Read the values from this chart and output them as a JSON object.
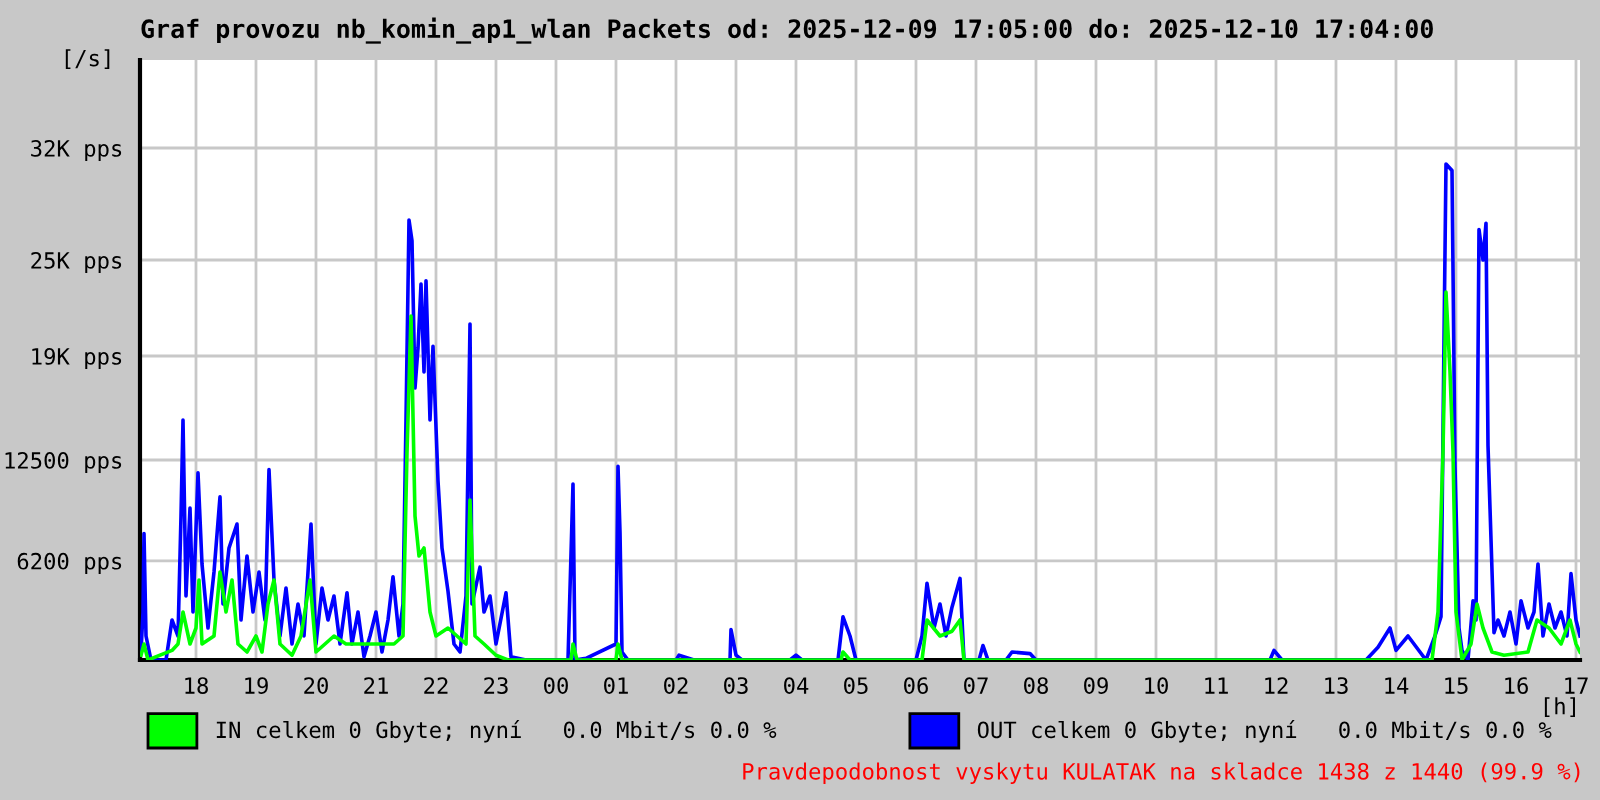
{
  "chart_data": {
    "type": "line",
    "title": "Graf provozu nb_komin_ap1_wlan Packets od: 2025-12-09 17:05:00 do: 2025-12-10 17:04:00",
    "xlabel": "[h]",
    "ylabel": "[/s]",
    "xlim": [
      "2025-12-09T17:04",
      "2025-12-10T17:04"
    ],
    "xticks": [
      {
        "value": "2025-12-09T18:00",
        "label": "18"
      },
      {
        "value": "2025-12-09T19:00",
        "label": "19"
      },
      {
        "value": "2025-12-09T20:00",
        "label": "20"
      },
      {
        "value": "2025-12-09T21:00",
        "label": "21"
      },
      {
        "value": "2025-12-09T22:00",
        "label": "22"
      },
      {
        "value": "2025-12-09T23:00",
        "label": "23"
      },
      {
        "value": "2025-12-10T00:00",
        "label": "00"
      },
      {
        "value": "2025-12-10T01:00",
        "label": "01"
      },
      {
        "value": "2025-12-10T02:00",
        "label": "02"
      },
      {
        "value": "2025-12-10T03:00",
        "label": "03"
      },
      {
        "value": "2025-12-10T04:00",
        "label": "04"
      },
      {
        "value": "2025-12-10T05:00",
        "label": "05"
      },
      {
        "value": "2025-12-10T06:00",
        "label": "06"
      },
      {
        "value": "2025-12-10T07:00",
        "label": "07"
      },
      {
        "value": "2025-12-10T08:00",
        "label": "08"
      },
      {
        "value": "2025-12-10T09:00",
        "label": "09"
      },
      {
        "value": "2025-12-10T10:00",
        "label": "10"
      },
      {
        "value": "2025-12-10T11:00",
        "label": "11"
      },
      {
        "value": "2025-12-10T12:00",
        "label": "12"
      },
      {
        "value": "2025-12-10T13:00",
        "label": "13"
      },
      {
        "value": "2025-12-10T14:00",
        "label": "14"
      },
      {
        "value": "2025-12-10T15:00",
        "label": "15"
      },
      {
        "value": "2025-12-10T16:00",
        "label": "16"
      },
      {
        "value": "2025-12-10T17:00",
        "label": "17"
      }
    ],
    "ylim": [
      0,
      37500
    ],
    "yticks": [
      {
        "value": 6200,
        "label": "6200 pps"
      },
      {
        "value": 12500,
        "label": "12500 pps"
      },
      {
        "value": 19000,
        "label": "19K pps"
      },
      {
        "value": 25000,
        "label": "25K pps"
      },
      {
        "value": 32000,
        "label": "32K pps"
      }
    ],
    "grid": true,
    "legend": "bottom",
    "series": [
      {
        "name": "IN celkem 0 Gbyte; nyní   0.0 Mbit/s 0.0 %",
        "color": "#00ff00",
        "x": [
          "2025-12-09T17:05",
          "2025-12-09T17:08",
          "2025-12-09T17:12",
          "2025-12-09T17:36",
          "2025-12-09T17:42",
          "2025-12-09T17:47",
          "2025-12-09T17:54",
          "2025-12-09T18:00",
          "2025-12-09T18:03",
          "2025-12-09T18:06",
          "2025-12-09T18:18",
          "2025-12-09T18:24",
          "2025-12-09T18:30",
          "2025-12-09T18:36",
          "2025-12-09T18:42",
          "2025-12-09T18:51",
          "2025-12-09T19:00",
          "2025-12-09T19:06",
          "2025-12-09T19:12",
          "2025-12-09T19:18",
          "2025-12-09T19:24",
          "2025-12-09T19:36",
          "2025-12-09T19:45",
          "2025-12-09T19:54",
          "2025-12-09T20:00",
          "2025-12-09T20:18",
          "2025-12-09T20:30",
          "2025-12-09T21:00",
          "2025-12-09T21:18",
          "2025-12-09T21:27",
          "2025-12-09T21:31",
          "2025-12-09T21:35",
          "2025-12-09T21:39",
          "2025-12-09T21:43",
          "2025-12-09T21:48",
          "2025-12-09T21:54",
          "2025-12-09T22:00",
          "2025-12-09T22:12",
          "2025-12-09T22:30",
          "2025-12-09T22:34",
          "2025-12-09T22:39",
          "2025-12-09T22:48",
          "2025-12-09T23:00",
          "2025-12-09T23:12",
          "2025-12-10T00:15",
          "2025-12-10T00:17",
          "2025-12-10T00:21",
          "2025-12-10T01:00",
          "2025-12-10T01:02",
          "2025-12-10T01:06",
          "2025-12-10T04:45",
          "2025-12-10T04:47",
          "2025-12-10T04:54",
          "2025-12-10T06:06",
          "2025-12-10T06:11",
          "2025-12-10T06:24",
          "2025-12-10T06:36",
          "2025-12-10T06:44",
          "2025-12-10T06:48",
          "2025-12-10T14:36",
          "2025-12-10T14:42",
          "2025-12-10T14:47",
          "2025-12-10T14:50",
          "2025-12-10T14:54",
          "2025-12-10T14:57",
          "2025-12-10T15:00",
          "2025-12-10T15:06",
          "2025-12-10T15:15",
          "2025-12-10T15:21",
          "2025-12-10T15:27",
          "2025-12-10T15:36",
          "2025-12-10T15:48",
          "2025-12-10T16:12",
          "2025-12-10T16:21",
          "2025-12-10T16:33",
          "2025-12-10T16:45",
          "2025-12-10T16:54",
          "2025-12-10T17:00",
          "2025-12-10T17:04"
        ],
        "values": [
          300,
          1000,
          0,
          600,
          1000,
          3000,
          1000,
          2000,
          5000,
          1000,
          1500,
          5500,
          3000,
          5000,
          1000,
          500,
          1500,
          500,
          3500,
          5000,
          1000,
          300,
          1500,
          5000,
          500,
          1500,
          1000,
          1000,
          1000,
          1500,
          13000,
          21500,
          9000,
          6500,
          7000,
          3000,
          1500,
          2000,
          1000,
          10000,
          1500,
          1000,
          300,
          0,
          0,
          1000,
          0,
          0,
          1000,
          0,
          0,
          500,
          0,
          0,
          2500,
          1500,
          1800,
          2500,
          0,
          0,
          3000,
          13000,
          23000,
          18000,
          13000,
          3000,
          0,
          1000,
          3500,
          2000,
          500,
          300,
          500,
          2500,
          2000,
          1000,
          2500,
          1000,
          500
        ]
      },
      {
        "name": "OUT celkem 0 Gbyte; nyní   0.0 Mbit/s 0.0 %",
        "color": "#0000ff",
        "x": [
          "2025-12-09T17:05",
          "2025-12-09T17:07",
          "2025-12-09T17:08",
          "2025-12-09T17:10",
          "2025-12-09T17:15",
          "2025-12-09T17:30",
          "2025-12-09T17:36",
          "2025-12-09T17:42",
          "2025-12-09T17:45",
          "2025-12-09T17:47",
          "2025-12-09T17:50",
          "2025-12-09T17:54",
          "2025-12-09T17:57",
          "2025-12-09T18:02",
          "2025-12-09T18:06",
          "2025-12-09T18:12",
          "2025-12-09T18:18",
          "2025-12-09T18:24",
          "2025-12-09T18:27",
          "2025-12-09T18:33",
          "2025-12-09T18:41",
          "2025-12-09T18:45",
          "2025-12-09T18:51",
          "2025-12-09T18:57",
          "2025-12-09T19:03",
          "2025-12-09T19:09",
          "2025-12-09T19:13",
          "2025-12-09T19:18",
          "2025-12-09T19:24",
          "2025-12-09T19:30",
          "2025-12-09T19:36",
          "2025-12-09T19:42",
          "2025-12-09T19:48",
          "2025-12-09T19:55",
          "2025-12-09T20:00",
          "2025-12-09T20:06",
          "2025-12-09T20:12",
          "2025-12-09T20:18",
          "2025-12-09T20:24",
          "2025-12-09T20:31",
          "2025-12-09T20:36",
          "2025-12-09T20:42",
          "2025-12-09T20:48",
          "2025-12-09T20:54",
          "2025-12-09T21:00",
          "2025-12-09T21:06",
          "2025-12-09T21:12",
          "2025-12-09T21:17",
          "2025-12-09T21:23",
          "2025-12-09T21:27",
          "2025-12-09T21:30",
          "2025-12-09T21:33",
          "2025-12-09T21:36",
          "2025-12-09T21:39",
          "2025-12-09T21:42",
          "2025-12-09T21:45",
          "2025-12-09T21:48",
          "2025-12-09T21:50",
          "2025-12-09T21:54",
          "2025-12-09T21:57",
          "2025-12-09T22:02",
          "2025-12-09T22:06",
          "2025-12-09T22:12",
          "2025-12-09T22:18",
          "2025-12-09T22:24",
          "2025-12-09T22:30",
          "2025-12-09T22:34",
          "2025-12-09T22:36",
          "2025-12-09T22:44",
          "2025-12-09T22:48",
          "2025-12-09T22:54",
          "2025-12-09T23:00",
          "2025-12-09T23:10",
          "2025-12-09T23:15",
          "2025-12-09T23:30",
          "2025-12-10T00:12",
          "2025-12-10T00:17",
          "2025-12-10T00:19",
          "2025-12-10T00:30",
          "2025-12-10T01:00",
          "2025-12-10T01:02",
          "2025-12-10T01:04",
          "2025-12-10T01:06",
          "2025-12-10T01:12",
          "2025-12-10T02:00",
          "2025-12-10T02:03",
          "2025-12-10T02:18",
          "2025-12-10T02:54",
          "2025-12-10T02:55",
          "2025-12-10T03:00",
          "2025-12-10T03:06",
          "2025-12-10T03:54",
          "2025-12-10T04:00",
          "2025-12-10T04:06",
          "2025-12-10T04:42",
          "2025-12-10T04:47",
          "2025-12-10T04:54",
          "2025-12-10T05:00",
          "2025-12-10T06:00",
          "2025-12-10T06:06",
          "2025-12-10T06:11",
          "2025-12-10T06:18",
          "2025-12-10T06:24",
          "2025-12-10T06:30",
          "2025-12-10T06:36",
          "2025-12-10T06:44",
          "2025-12-10T06:48",
          "2025-12-10T07:03",
          "2025-12-10T07:07",
          "2025-12-10T07:12",
          "2025-12-10T07:30",
          "2025-12-10T07:36",
          "2025-12-10T07:54",
          "2025-12-10T08:00",
          "2025-12-10T11:54",
          "2025-12-10T11:58",
          "2025-12-10T12:06",
          "2025-12-10T13:30",
          "2025-12-10T13:42",
          "2025-12-10T13:54",
          "2025-12-10T14:00",
          "2025-12-10T14:12",
          "2025-12-10T14:30",
          "2025-12-10T14:39",
          "2025-12-10T14:45",
          "2025-12-10T14:48",
          "2025-12-10T14:50",
          "2025-12-10T14:56",
          "2025-12-10T14:59",
          "2025-12-10T15:03",
          "2025-12-10T15:06",
          "2025-12-10T15:12",
          "2025-12-10T15:17",
          "2025-12-10T15:20",
          "2025-12-10T15:23",
          "2025-12-10T15:27",
          "2025-12-10T15:30",
          "2025-12-10T15:32",
          "2025-12-10T15:38",
          "2025-12-10T15:42",
          "2025-12-10T15:48",
          "2025-12-10T15:54",
          "2025-12-10T16:00",
          "2025-12-10T16:05",
          "2025-12-10T16:12",
          "2025-12-10T16:18",
          "2025-12-10T16:22",
          "2025-12-10T16:27",
          "2025-12-10T16:33",
          "2025-12-10T16:39",
          "2025-12-10T16:45",
          "2025-12-10T16:51",
          "2025-12-10T16:55",
          "2025-12-10T17:00",
          "2025-12-10T17:04"
        ],
        "values": [
          500,
          3000,
          7900,
          1500,
          0,
          0,
          2500,
          1500,
          9000,
          15000,
          4000,
          9500,
          3000,
          11700,
          6000,
          2000,
          5500,
          10200,
          3500,
          7000,
          8500,
          2500,
          6500,
          3000,
          5500,
          2500,
          11900,
          5000,
          1500,
          4500,
          1000,
          3500,
          1500,
          8500,
          1000,
          4500,
          2500,
          4000,
          1000,
          4200,
          1000,
          3000,
          200,
          1500,
          3000,
          500,
          2500,
          5200,
          1500,
          3500,
          15000,
          27500,
          26200,
          17000,
          19500,
          23500,
          18000,
          23700,
          15000,
          19600,
          11200,
          7000,
          4300,
          1000,
          500,
          4000,
          21000,
          3500,
          5800,
          3000,
          4000,
          1000,
          4200,
          200,
          0,
          0,
          11000,
          0,
          100,
          1000,
          12100,
          8000,
          500,
          0,
          0,
          300,
          0,
          0,
          1900,
          300,
          0,
          0,
          300,
          0,
          0,
          2700,
          1500,
          0,
          0,
          1500,
          4800,
          2000,
          3500,
          1500,
          3300,
          5100,
          0,
          0,
          900,
          0,
          0,
          500,
          400,
          0,
          0,
          600,
          0,
          0,
          800,
          2000,
          600,
          1500,
          0,
          1500,
          2700,
          20000,
          31000,
          30600,
          12100,
          2000,
          600,
          0,
          3700,
          2500,
          26900,
          25000,
          27300,
          13400,
          1700,
          2500,
          1500,
          3000,
          1000,
          3700,
          2000,
          3000,
          6000,
          1500,
          3500,
          2000,
          3000,
          1500,
          5400,
          2500,
          1500
        ]
      }
    ],
    "annotations": [
      "Pravdepodobnost vyskytu KULATAK na skladce 1438 z 1440 (99.9 %)"
    ]
  }
}
